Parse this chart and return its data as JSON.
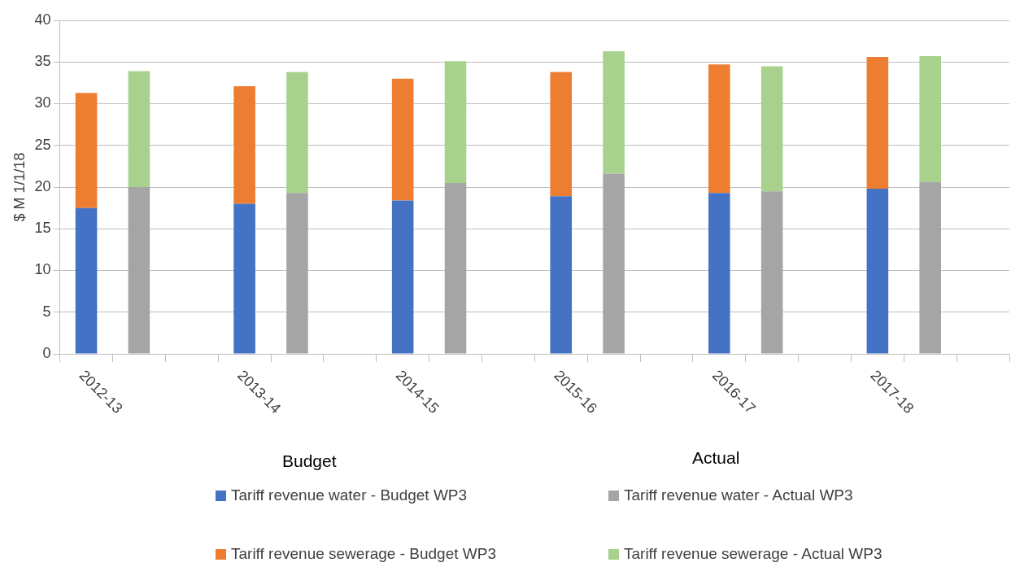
{
  "chart_data": {
    "type": "bar",
    "ylabel": "$ M 1/1/18",
    "categories": [
      "2012-13",
      null,
      null,
      "2013-14",
      null,
      null,
      "2014-15",
      null,
      null,
      "2015-16",
      null,
      null,
      "2016-17",
      null,
      null,
      "2017-18",
      null,
      null
    ],
    "series": [
      {
        "name": "Tariff revenue water - Budget WP3",
        "color": "#4472c4",
        "values": [
          17.5,
          null,
          null,
          18.0,
          null,
          null,
          18.4,
          null,
          null,
          18.9,
          null,
          null,
          19.3,
          null,
          null,
          19.8,
          null,
          null
        ]
      },
      {
        "name": "Tariff revenue water - Actual WP3",
        "color": "#a5a5a5",
        "values": [
          null,
          20.0,
          null,
          null,
          19.3,
          null,
          null,
          20.5,
          null,
          null,
          21.6,
          null,
          null,
          19.5,
          null,
          null,
          20.6,
          null
        ]
      },
      {
        "name": "Tariff revenue sewerage - Budget WP3",
        "color": "#ed7d31",
        "values": [
          13.8,
          null,
          null,
          14.1,
          null,
          null,
          14.6,
          null,
          null,
          14.9,
          null,
          null,
          15.4,
          null,
          null,
          15.8,
          null,
          null
        ]
      },
      {
        "name": "Tariff revenue sewerage - Actual WP3",
        "color": "#a9d18e",
        "values": [
          null,
          13.9,
          null,
          null,
          14.5,
          null,
          null,
          14.6,
          null,
          null,
          14.7,
          null,
          null,
          15.0,
          null,
          null,
          15.1,
          null
        ]
      }
    ],
    "stacked": true,
    "ylim": [
      0,
      40
    ],
    "yticks": [
      0,
      5,
      10,
      15,
      20,
      25,
      30,
      35,
      40
    ],
    "grid": "y",
    "legend": "bottom",
    "annotations": [
      "Budget",
      "Actual"
    ]
  }
}
